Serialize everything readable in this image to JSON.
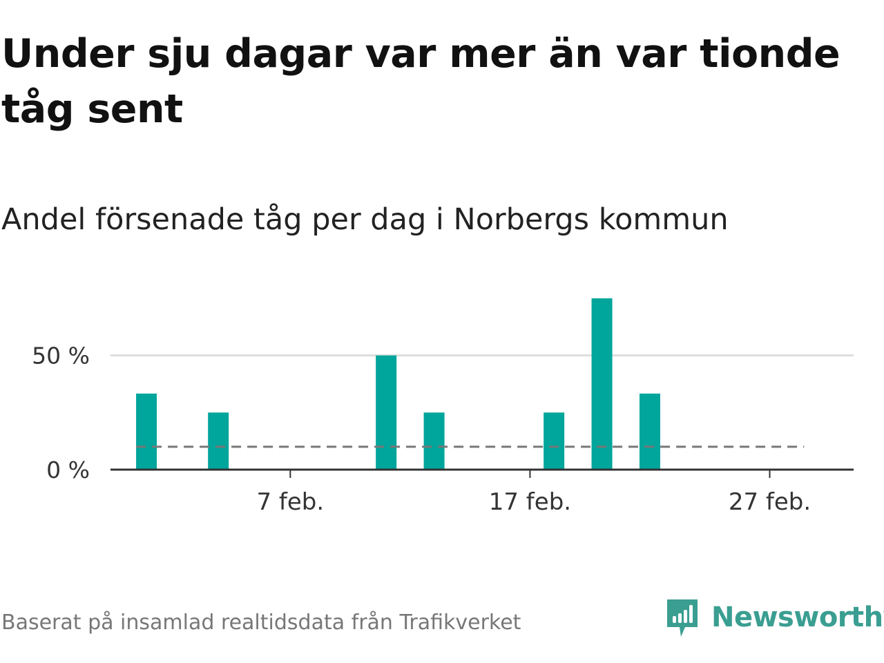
{
  "title": "Under sju dagar var mer än var tionde tåg sent",
  "subtitle": "Andel försenade tåg per dag i Norbergs kommun",
  "source": "Baserat på insamlad realtidsdata från Trafikverket",
  "brand": {
    "name": "Newsworthy",
    "icon": "newsworthy-logo-icon",
    "color": "#3a9e91"
  },
  "colors": {
    "bar": "#00a59b",
    "reference_line": "#777777",
    "grid": "#dddddd",
    "axis": "#333333"
  },
  "chart_data": {
    "type": "bar",
    "title": "Under sju dagar var mer än var tionde tåg sent",
    "subtitle": "Andel försenade tåg per dag i Norbergs kommun",
    "x_unit": "day of February",
    "x": [
      1,
      4,
      11,
      13,
      18,
      20,
      22
    ],
    "values": [
      33.3,
      25,
      50,
      25,
      25,
      75,
      33.3
    ],
    "reference_line": {
      "value": 10,
      "style": "dashed",
      "x_start": 1,
      "x_end": 28
    },
    "xlim": [
      -0.5,
      30.5
    ],
    "ylim": [
      0,
      75
    ],
    "y_ticks": [
      0,
      50
    ],
    "y_tick_labels": [
      "0 %",
      "50 %"
    ],
    "x_ticks": [
      7,
      17,
      27
    ],
    "x_tick_labels": [
      "7 feb.",
      "17 feb.",
      "27 feb."
    ],
    "grid": true
  }
}
